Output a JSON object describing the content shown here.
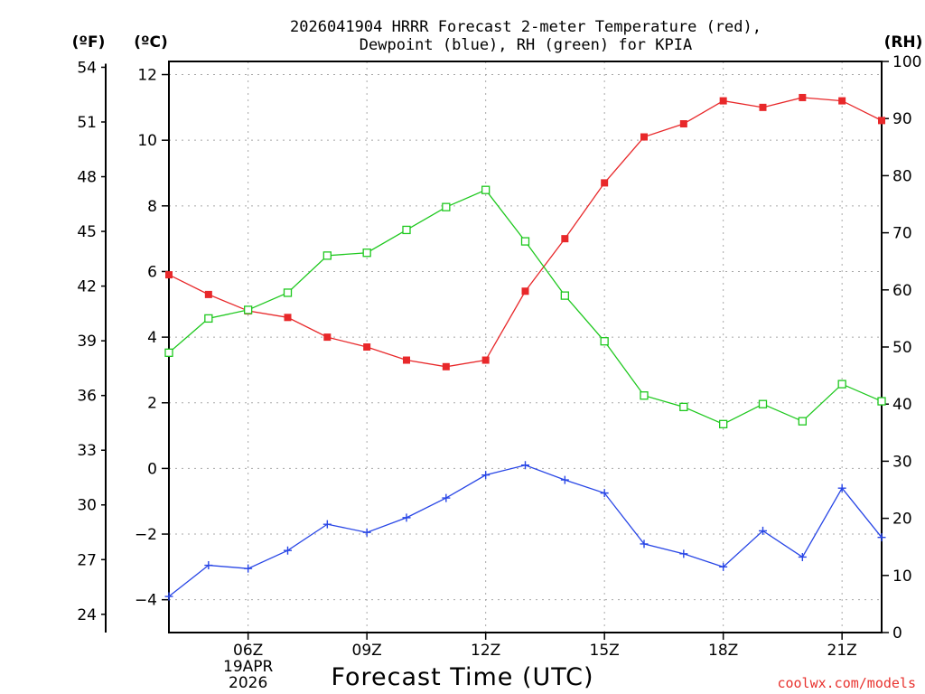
{
  "title_line1": "2026041904 HRRR Forecast 2-meter Temperature (red),",
  "title_line2": "Dewpoint (blue), RH (green) for KPIA",
  "units": {
    "fahrenheit": "(ºF)",
    "celsius": "(ºC)",
    "rh": "(RH)"
  },
  "credit": "coolwx.com/models",
  "chart_data": {
    "type": "line",
    "title": "2026041904 HRRR Forecast 2-meter Temperature (red), Dewpoint (blue), RH (green) for KPIA",
    "xlabel": "Forecast Time (UTC)",
    "x_hours": [
      4,
      5,
      6,
      7,
      8,
      9,
      10,
      11,
      12,
      13,
      14,
      15,
      16,
      17,
      18,
      19,
      20,
      21,
      22
    ],
    "xlim": [
      4,
      22
    ],
    "x_ticks": [
      {
        "hour": 6,
        "label": "06Z",
        "extra": [
          "19APR",
          "2026"
        ]
      },
      {
        "hour": 9,
        "label": "09Z",
        "extra": []
      },
      {
        "hour": 12,
        "label": "12Z",
        "extra": []
      },
      {
        "hour": 15,
        "label": "15Z",
        "extra": []
      },
      {
        "hour": 18,
        "label": "18Z",
        "extra": []
      },
      {
        "hour": 21,
        "label": "21Z",
        "extra": []
      }
    ],
    "y_celsius": {
      "ylim": [
        -5,
        12.4
      ],
      "ticks": [
        -4,
        -2,
        0,
        2,
        4,
        6,
        8,
        10,
        12
      ],
      "labels": [
        "−4",
        "−2",
        "0",
        "2",
        "4",
        "6",
        "8",
        "10",
        "12"
      ]
    },
    "y_fahrenheit": {
      "ticks": [
        24,
        27,
        30,
        33,
        36,
        39,
        42,
        45,
        48,
        51,
        54
      ],
      "labels": [
        "24",
        "27",
        "30",
        "33",
        "36",
        "39",
        "42",
        "45",
        "48",
        "51",
        "54"
      ]
    },
    "y_rh": {
      "ylim": [
        0,
        100
      ],
      "ticks": [
        0,
        10,
        20,
        30,
        40,
        50,
        60,
        70,
        80,
        90,
        100
      ],
      "labels": [
        "0",
        "10",
        "20",
        "30",
        "40",
        "50",
        "60",
        "70",
        "80",
        "90",
        "100"
      ]
    },
    "series": [
      {
        "name": "Temperature",
        "axis": "celsius",
        "color": "#e8282a",
        "marker": "filled-square",
        "values": [
          5.9,
          5.3,
          4.8,
          4.6,
          4.0,
          3.7,
          3.3,
          3.1,
          3.3,
          5.4,
          7.0,
          8.7,
          10.1,
          10.5,
          11.2,
          11.0,
          11.3,
          11.2,
          10.6
        ]
      },
      {
        "name": "Dewpoint",
        "axis": "celsius",
        "color": "#2846e6",
        "marker": "plus",
        "values": [
          -3.9,
          -2.95,
          -3.05,
          -2.5,
          -1.7,
          -1.95,
          -1.5,
          -0.9,
          -0.2,
          0.1,
          -0.35,
          -0.75,
          -2.3,
          -2.6,
          -3.0,
          -1.9,
          -2.7,
          -0.6,
          -2.1
        ]
      },
      {
        "name": "RH",
        "axis": "rh",
        "color": "#1ec81e",
        "marker": "open-square",
        "values": [
          49,
          55,
          56.5,
          59.5,
          66,
          66.5,
          70.5,
          74.5,
          77.5,
          68.5,
          59,
          51,
          41.5,
          39.5,
          36.5,
          40,
          37,
          43.5,
          40.5
        ]
      }
    ]
  }
}
